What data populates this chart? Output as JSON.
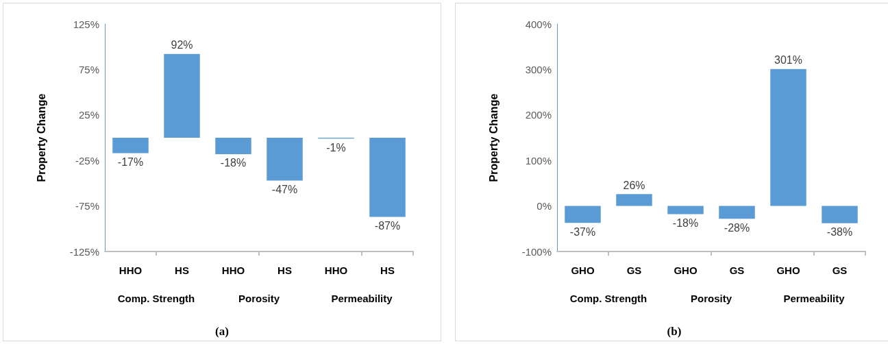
{
  "chart_data": [
    {
      "type": "bar",
      "title": "(a)",
      "ylabel": "Property Change",
      "categories": [
        "HHO",
        "HS",
        "HHO",
        "HS",
        "HHO",
        "HS"
      ],
      "values": [
        -17,
        92,
        -18,
        -47,
        -1,
        -87
      ],
      "color": "#5b9bd5",
      "data_labels": true,
      "value_labels": [
        "-17%",
        "92%",
        "-18%",
        "-47%",
        "-1%",
        "-87%"
      ],
      "ylim": [
        -125,
        125
      ],
      "yticks": [
        {
          "value": -125,
          "label": "-125%"
        },
        {
          "value": -75,
          "label": "-75%"
        },
        {
          "value": -25,
          "label": "-25%"
        },
        {
          "value": 25,
          "label": "25%"
        },
        {
          "value": 75,
          "label": "75%"
        },
        {
          "value": 125,
          "label": "125%"
        }
      ],
      "annotations": [
        "Comp. Strength",
        "Porosity",
        "Permeability"
      ],
      "grid": false
    },
    {
      "type": "bar",
      "title": "(b)",
      "ylabel": "Property Change",
      "categories": [
        "GHO",
        "GS",
        "GHO",
        "GS",
        "GHO",
        "GS"
      ],
      "values": [
        -37,
        26,
        -18,
        -28,
        301,
        -38
      ],
      "color": "#5b9bd5",
      "data_labels": true,
      "value_labels": [
        "-37%",
        "26%",
        "-18%",
        "-28%",
        "301%",
        "-38%"
      ],
      "ylim": [
        -100,
        400
      ],
      "yticks": [
        {
          "value": -100,
          "label": "-100%"
        },
        {
          "value": 0,
          "label": "0%"
        },
        {
          "value": 100,
          "label": "100%"
        },
        {
          "value": 200,
          "label": "200%"
        },
        {
          "value": 300,
          "label": "300%"
        },
        {
          "value": 400,
          "label": "400%"
        }
      ],
      "annotations": [
        "Comp. Strength",
        "Porosity",
        "Permeability"
      ],
      "grid": false
    }
  ]
}
